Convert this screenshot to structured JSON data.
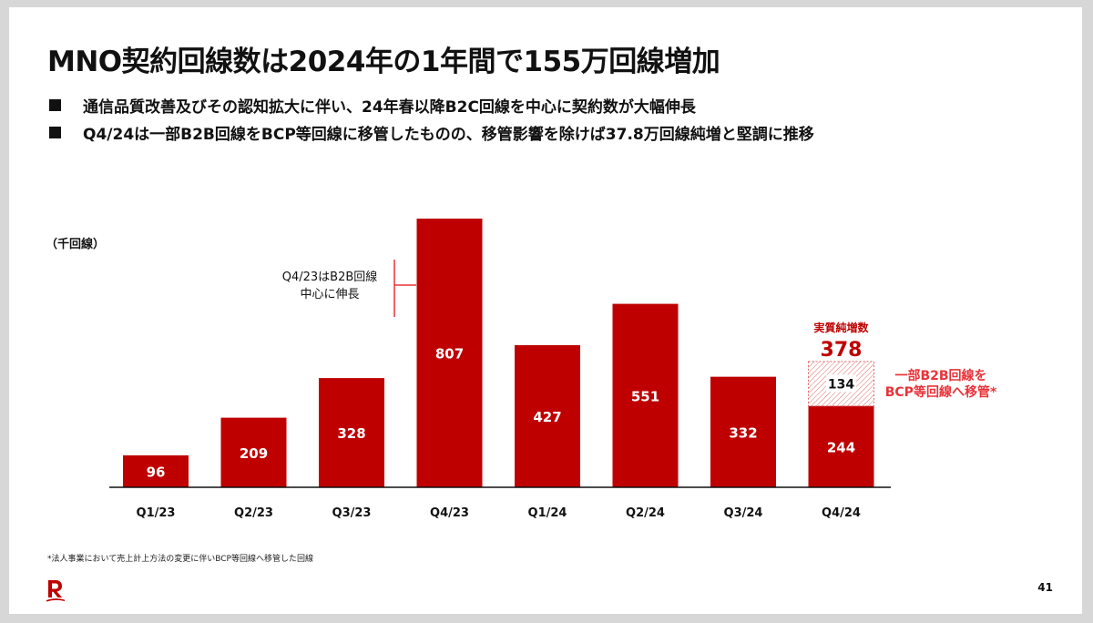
{
  "title": "MNO契約回線数は2024年の1年間で155万回線増加",
  "bullets": [
    "通信品質改善及びその認知拡大に伴い、24年春以降B2C回線を中心に契約数が大幅伸長",
    "Q4/24は一部B2B回線をBCP等回線に移管したものの、移管影響を除けば37.8万回線純増と堅調に推移"
  ],
  "unit_label": "（千回線）",
  "footnote": "*法人事業において売上計上方法の変更に伴いBCP等回線へ移管した回線",
  "page_number": "41",
  "colors": {
    "bar": "#bf0000",
    "accent": "#e8333a",
    "hatch": "#e06a6a"
  },
  "chart_data": {
    "type": "bar",
    "categories": [
      "Q1/23",
      "Q2/23",
      "Q3/23",
      "Q4/23",
      "Q1/24",
      "Q2/24",
      "Q3/24",
      "Q4/24"
    ],
    "values": [
      96,
      209,
      328,
      807,
      427,
      551,
      332,
      244
    ],
    "stacked_extra": {
      "category": "Q4/24",
      "value": 134
    },
    "ylim": [
      0,
      807
    ],
    "grid": false,
    "annotations": {
      "q4_23_note": [
        "Q4/23はB2B回線",
        "中心に伸長"
      ],
      "net_label": "実質純増数",
      "net_value": "378",
      "transfer_note": [
        "一部B2B回線を",
        "BCP等回線へ移管*"
      ]
    }
  }
}
